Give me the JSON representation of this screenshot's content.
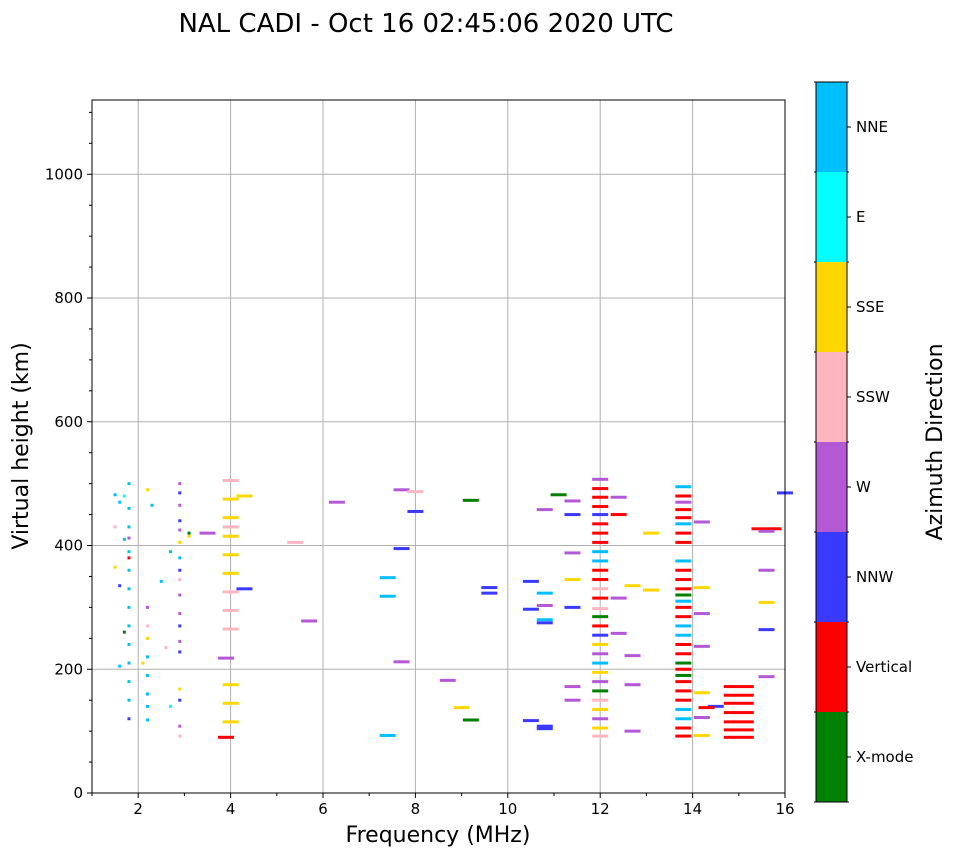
{
  "chart_data": {
    "type": "scatter",
    "title": "NAL CADI - Oct 16 02:45:06 2020 UTC",
    "xlabel": "Frequency (MHz)",
    "ylabel": "Virtual height (km)",
    "xlim": [
      1,
      16
    ],
    "ylim": [
      0,
      1120
    ],
    "xticks": [
      2,
      4,
      6,
      8,
      10,
      12,
      14,
      16
    ],
    "yticks": [
      0,
      200,
      400,
      600,
      800,
      1000
    ],
    "grid": true,
    "colorbar": {
      "label": "Azimuth Direction",
      "categories": [
        {
          "name": "X-mode",
          "color": "#008000"
        },
        {
          "name": "Vertical",
          "color": "#ff0000"
        },
        {
          "name": "NNW",
          "color": "#3a3aff"
        },
        {
          "name": "W",
          "color": "#b458d6"
        },
        {
          "name": "SSW",
          "color": "#ffb6c1"
        },
        {
          "name": "SSE",
          "color": "#ffd700"
        },
        {
          "name": "E",
          "color": "#00ffff"
        },
        {
          "name": "NNE",
          "color": "#00bfff"
        }
      ]
    },
    "points": [
      {
        "f": 1.5,
        "h": 482,
        "d": "NNE"
      },
      {
        "f": 1.6,
        "h": 470,
        "d": "NNE"
      },
      {
        "f": 1.7,
        "h": 480,
        "d": "E"
      },
      {
        "f": 1.8,
        "h": 500,
        "d": "NNE"
      },
      {
        "f": 1.8,
        "h": 460,
        "d": "NNE"
      },
      {
        "f": 1.8,
        "h": 430,
        "d": "NNE"
      },
      {
        "f": 1.7,
        "h": 410,
        "d": "NNE"
      },
      {
        "f": 1.8,
        "h": 390,
        "d": "NNE"
      },
      {
        "f": 1.8,
        "h": 360,
        "d": "NNE"
      },
      {
        "f": 1.8,
        "h": 330,
        "d": "NNE"
      },
      {
        "f": 1.8,
        "h": 300,
        "d": "NNE"
      },
      {
        "f": 1.8,
        "h": 270,
        "d": "NNE"
      },
      {
        "f": 1.8,
        "h": 240,
        "d": "NNE"
      },
      {
        "f": 1.8,
        "h": 210,
        "d": "NNE"
      },
      {
        "f": 1.8,
        "h": 180,
        "d": "NNE"
      },
      {
        "f": 1.8,
        "h": 150,
        "d": "NNE"
      },
      {
        "f": 1.8,
        "h": 120,
        "d": "NNW"
      },
      {
        "f": 1.5,
        "h": 430,
        "d": "SSW"
      },
      {
        "f": 1.5,
        "h": 365,
        "d": "SSE"
      },
      {
        "f": 1.6,
        "h": 335,
        "d": "NNW"
      },
      {
        "f": 1.7,
        "h": 260,
        "d": "X-mode"
      },
      {
        "f": 1.6,
        "h": 205,
        "d": "NNE"
      },
      {
        "f": 1.8,
        "h": 412,
        "d": "W"
      },
      {
        "f": 1.8,
        "h": 380,
        "d": "Vertical"
      },
      {
        "f": 2.2,
        "h": 490,
        "d": "SSE"
      },
      {
        "f": 2.3,
        "h": 465,
        "d": "NNE"
      },
      {
        "f": 2.2,
        "h": 300,
        "d": "W"
      },
      {
        "f": 2.2,
        "h": 270,
        "d": "SSW"
      },
      {
        "f": 2.2,
        "h": 250,
        "d": "SSE"
      },
      {
        "f": 2.2,
        "h": 220,
        "d": "NNE"
      },
      {
        "f": 2.1,
        "h": 210,
        "d": "SSE"
      },
      {
        "f": 2.2,
        "h": 190,
        "d": "NNE"
      },
      {
        "f": 2.2,
        "h": 160,
        "d": "NNE"
      },
      {
        "f": 2.2,
        "h": 140,
        "d": "NNE"
      },
      {
        "f": 2.2,
        "h": 118,
        "d": "NNE"
      },
      {
        "f": 2.5,
        "h": 342,
        "d": "NNE"
      },
      {
        "f": 2.6,
        "h": 235,
        "d": "SSW"
      },
      {
        "f": 2.7,
        "h": 390,
        "d": "NNE"
      },
      {
        "f": 2.7,
        "h": 140,
        "d": "E"
      },
      {
        "f": 2.9,
        "h": 500,
        "d": "W"
      },
      {
        "f": 2.9,
        "h": 485,
        "d": "NNW"
      },
      {
        "f": 2.9,
        "h": 465,
        "d": "W"
      },
      {
        "f": 2.9,
        "h": 440,
        "d": "NNW"
      },
      {
        "f": 2.9,
        "h": 425,
        "d": "W"
      },
      {
        "f": 2.9,
        "h": 405,
        "d": "SSE"
      },
      {
        "f": 2.9,
        "h": 380,
        "d": "NNE"
      },
      {
        "f": 2.9,
        "h": 360,
        "d": "NNW"
      },
      {
        "f": 2.9,
        "h": 345,
        "d": "SSW"
      },
      {
        "f": 2.9,
        "h": 320,
        "d": "W"
      },
      {
        "f": 2.9,
        "h": 290,
        "d": "W"
      },
      {
        "f": 2.9,
        "h": 270,
        "d": "NNW"
      },
      {
        "f": 2.9,
        "h": 245,
        "d": "W"
      },
      {
        "f": 2.9,
        "h": 228,
        "d": "NNW"
      },
      {
        "f": 2.9,
        "h": 168,
        "d": "SSE"
      },
      {
        "f": 2.9,
        "h": 150,
        "d": "NNW"
      },
      {
        "f": 2.9,
        "h": 108,
        "d": "W"
      },
      {
        "f": 2.9,
        "h": 92,
        "d": "SSW"
      },
      {
        "f": 3.1,
        "h": 415,
        "d": "SSE"
      },
      {
        "f": 3.1,
        "h": 420,
        "d": "X-mode"
      },
      {
        "f": 3.5,
        "h": 420,
        "d": "W"
      },
      {
        "f": 4.0,
        "h": 505,
        "d": "SSW"
      },
      {
        "f": 4.0,
        "h": 475,
        "d": "SSE"
      },
      {
        "f": 4.0,
        "h": 445,
        "d": "SSE"
      },
      {
        "f": 4.0,
        "h": 430,
        "d": "SSW"
      },
      {
        "f": 4.0,
        "h": 415,
        "d": "SSE"
      },
      {
        "f": 4.0,
        "h": 385,
        "d": "SSE"
      },
      {
        "f": 4.0,
        "h": 355,
        "d": "SSE"
      },
      {
        "f": 4.0,
        "h": 325,
        "d": "SSW"
      },
      {
        "f": 4.0,
        "h": 295,
        "d": "SSW"
      },
      {
        "f": 4.0,
        "h": 265,
        "d": "SSW"
      },
      {
        "f": 3.9,
        "h": 218,
        "d": "W"
      },
      {
        "f": 4.0,
        "h": 175,
        "d": "SSE"
      },
      {
        "f": 4.0,
        "h": 145,
        "d": "SSE"
      },
      {
        "f": 4.0,
        "h": 115,
        "d": "SSE"
      },
      {
        "f": 3.9,
        "h": 90,
        "d": "Vertical"
      },
      {
        "f": 4.3,
        "h": 480,
        "d": "SSE"
      },
      {
        "f": 4.3,
        "h": 330,
        "d": "NNW"
      },
      {
        "f": 5.4,
        "h": 405,
        "d": "SSW"
      },
      {
        "f": 5.7,
        "h": 278,
        "d": "W"
      },
      {
        "f": 6.3,
        "h": 470,
        "d": "W"
      },
      {
        "f": 7.4,
        "h": 348,
        "d": "NNE"
      },
      {
        "f": 7.4,
        "h": 318,
        "d": "NNE"
      },
      {
        "f": 7.4,
        "h": 93,
        "d": "NNE"
      },
      {
        "f": 7.7,
        "h": 490,
        "d": "W"
      },
      {
        "f": 7.7,
        "h": 395,
        "d": "NNW"
      },
      {
        "f": 7.7,
        "h": 212,
        "d": "W"
      },
      {
        "f": 8.0,
        "h": 487,
        "d": "SSW"
      },
      {
        "f": 8.0,
        "h": 455,
        "d": "NNW"
      },
      {
        "f": 8.7,
        "h": 182,
        "d": "W"
      },
      {
        "f": 9.0,
        "h": 138,
        "d": "SSE"
      },
      {
        "f": 9.2,
        "h": 473,
        "d": "X-mode"
      },
      {
        "f": 9.2,
        "h": 118,
        "d": "X-mode"
      },
      {
        "f": 9.6,
        "h": 332,
        "d": "NNW"
      },
      {
        "f": 9.6,
        "h": 323,
        "d": "NNW"
      },
      {
        "f": 10.5,
        "h": 342,
        "d": "NNW"
      },
      {
        "f": 10.5,
        "h": 297,
        "d": "NNW"
      },
      {
        "f": 10.5,
        "h": 117,
        "d": "NNW"
      },
      {
        "f": 10.8,
        "h": 458,
        "d": "W"
      },
      {
        "f": 10.8,
        "h": 323,
        "d": "NNE"
      },
      {
        "f": 10.8,
        "h": 303,
        "d": "W"
      },
      {
        "f": 10.8,
        "h": 280,
        "d": "NNE"
      },
      {
        "f": 10.8,
        "h": 275,
        "d": "NNW"
      },
      {
        "f": 10.8,
        "h": 108,
        "d": "NNW"
      },
      {
        "f": 10.8,
        "h": 104,
        "d": "NNW"
      },
      {
        "f": 11.1,
        "h": 482,
        "d": "X-mode"
      },
      {
        "f": 11.4,
        "h": 472,
        "d": "W"
      },
      {
        "f": 11.4,
        "h": 450,
        "d": "NNW"
      },
      {
        "f": 11.4,
        "h": 388,
        "d": "W"
      },
      {
        "f": 11.4,
        "h": 345,
        "d": "SSE"
      },
      {
        "f": 11.4,
        "h": 300,
        "d": "NNW"
      },
      {
        "f": 11.4,
        "h": 172,
        "d": "W"
      },
      {
        "f": 11.4,
        "h": 150,
        "d": "W"
      },
      {
        "f": 12.0,
        "h": 507,
        "d": "W"
      },
      {
        "f": 12.0,
        "h": 492,
        "d": "Vertical"
      },
      {
        "f": 12.0,
        "h": 478,
        "d": "Vertical"
      },
      {
        "f": 12.0,
        "h": 463,
        "d": "Vertical"
      },
      {
        "f": 12.0,
        "h": 450,
        "d": "NNW"
      },
      {
        "f": 12.0,
        "h": 435,
        "d": "Vertical"
      },
      {
        "f": 12.0,
        "h": 420,
        "d": "Vertical"
      },
      {
        "f": 12.0,
        "h": 405,
        "d": "Vertical"
      },
      {
        "f": 12.0,
        "h": 390,
        "d": "NNE"
      },
      {
        "f": 12.0,
        "h": 375,
        "d": "NNE"
      },
      {
        "f": 12.0,
        "h": 360,
        "d": "Vertical"
      },
      {
        "f": 12.0,
        "h": 345,
        "d": "Vertical"
      },
      {
        "f": 12.0,
        "h": 330,
        "d": "SSW"
      },
      {
        "f": 12.0,
        "h": 315,
        "d": "Vertical"
      },
      {
        "f": 12.0,
        "h": 298,
        "d": "SSW"
      },
      {
        "f": 12.0,
        "h": 285,
        "d": "X-mode"
      },
      {
        "f": 12.0,
        "h": 270,
        "d": "Vertical"
      },
      {
        "f": 12.0,
        "h": 255,
        "d": "NNW"
      },
      {
        "f": 12.0,
        "h": 240,
        "d": "SSE"
      },
      {
        "f": 12.0,
        "h": 225,
        "d": "W"
      },
      {
        "f": 12.0,
        "h": 210,
        "d": "NNE"
      },
      {
        "f": 12.0,
        "h": 195,
        "d": "SSE"
      },
      {
        "f": 12.0,
        "h": 180,
        "d": "W"
      },
      {
        "f": 12.0,
        "h": 165,
        "d": "X-mode"
      },
      {
        "f": 12.0,
        "h": 150,
        "d": "SSW"
      },
      {
        "f": 12.0,
        "h": 135,
        "d": "SSE"
      },
      {
        "f": 12.0,
        "h": 120,
        "d": "W"
      },
      {
        "f": 12.0,
        "h": 105,
        "d": "SSE"
      },
      {
        "f": 12.0,
        "h": 92,
        "d": "SSW"
      },
      {
        "f": 12.4,
        "h": 478,
        "d": "W"
      },
      {
        "f": 12.4,
        "h": 450,
        "d": "Vertical"
      },
      {
        "f": 12.4,
        "h": 315,
        "d": "W"
      },
      {
        "f": 12.4,
        "h": 258,
        "d": "W"
      },
      {
        "f": 12.7,
        "h": 335,
        "d": "SSE"
      },
      {
        "f": 12.7,
        "h": 222,
        "d": "W"
      },
      {
        "f": 12.7,
        "h": 175,
        "d": "W"
      },
      {
        "f": 12.7,
        "h": 100,
        "d": "W"
      },
      {
        "f": 13.1,
        "h": 420,
        "d": "SSE"
      },
      {
        "f": 13.1,
        "h": 328,
        "d": "SSE"
      },
      {
        "f": 13.8,
        "h": 495,
        "d": "NNE"
      },
      {
        "f": 13.8,
        "h": 480,
        "d": "Vertical"
      },
      {
        "f": 13.8,
        "h": 470,
        "d": "W"
      },
      {
        "f": 13.8,
        "h": 458,
        "d": "Vertical"
      },
      {
        "f": 13.8,
        "h": 445,
        "d": "Vertical"
      },
      {
        "f": 13.8,
        "h": 435,
        "d": "NNE"
      },
      {
        "f": 13.8,
        "h": 420,
        "d": "Vertical"
      },
      {
        "f": 13.8,
        "h": 405,
        "d": "Vertical"
      },
      {
        "f": 13.8,
        "h": 375,
        "d": "NNE"
      },
      {
        "f": 13.8,
        "h": 360,
        "d": "Vertical"
      },
      {
        "f": 13.8,
        "h": 345,
        "d": "Vertical"
      },
      {
        "f": 13.8,
        "h": 330,
        "d": "Vertical"
      },
      {
        "f": 13.8,
        "h": 320,
        "d": "X-mode"
      },
      {
        "f": 13.8,
        "h": 310,
        "d": "NNE"
      },
      {
        "f": 13.8,
        "h": 300,
        "d": "Vertical"
      },
      {
        "f": 13.8,
        "h": 285,
        "d": "Vertical"
      },
      {
        "f": 13.8,
        "h": 270,
        "d": "NNE"
      },
      {
        "f": 13.8,
        "h": 255,
        "d": "NNE"
      },
      {
        "f": 13.8,
        "h": 240,
        "d": "Vertical"
      },
      {
        "f": 13.8,
        "h": 225,
        "d": "Vertical"
      },
      {
        "f": 13.8,
        "h": 210,
        "d": "X-mode"
      },
      {
        "f": 13.8,
        "h": 200,
        "d": "Vertical"
      },
      {
        "f": 13.8,
        "h": 190,
        "d": "X-mode"
      },
      {
        "f": 13.8,
        "h": 180,
        "d": "Vertical"
      },
      {
        "f": 13.8,
        "h": 165,
        "d": "Vertical"
      },
      {
        "f": 13.8,
        "h": 150,
        "d": "Vertical"
      },
      {
        "f": 13.8,
        "h": 135,
        "d": "NNE"
      },
      {
        "f": 13.8,
        "h": 120,
        "d": "NNE"
      },
      {
        "f": 13.8,
        "h": 105,
        "d": "Vertical"
      },
      {
        "f": 13.8,
        "h": 92,
        "d": "Vertical"
      },
      {
        "f": 14.2,
        "h": 438,
        "d": "W"
      },
      {
        "f": 14.2,
        "h": 332,
        "d": "SSE"
      },
      {
        "f": 14.2,
        "h": 290,
        "d": "W"
      },
      {
        "f": 14.2,
        "h": 237,
        "d": "W"
      },
      {
        "f": 14.2,
        "h": 162,
        "d": "SSE"
      },
      {
        "f": 14.2,
        "h": 122,
        "d": "W"
      },
      {
        "f": 14.2,
        "h": 93,
        "d": "SSE"
      },
      {
        "f": 14.5,
        "h": 140,
        "d": "NNW"
      },
      {
        "f": 14.3,
        "h": 138,
        "d": "Vertical"
      },
      {
        "f": 15.0,
        "h": 172,
        "d": "Vertical"
      },
      {
        "f": 15.0,
        "h": 158,
        "d": "Vertical"
      },
      {
        "f": 15.0,
        "h": 145,
        "d": "Vertical"
      },
      {
        "f": 15.0,
        "h": 130,
        "d": "Vertical"
      },
      {
        "f": 15.0,
        "h": 115,
        "d": "Vertical"
      },
      {
        "f": 15.0,
        "h": 102,
        "d": "Vertical"
      },
      {
        "f": 15.0,
        "h": 90,
        "d": "Vertical"
      },
      {
        "f": 15.6,
        "h": 427,
        "d": "Vertical"
      },
      {
        "f": 15.6,
        "h": 423,
        "d": "W"
      },
      {
        "f": 15.6,
        "h": 360,
        "d": "W"
      },
      {
        "f": 15.6,
        "h": 308,
        "d": "SSE"
      },
      {
        "f": 15.6,
        "h": 264,
        "d": "NNW"
      },
      {
        "f": 15.6,
        "h": 188,
        "d": "W"
      },
      {
        "f": 16.0,
        "h": 485,
        "d": "NNW"
      }
    ]
  }
}
